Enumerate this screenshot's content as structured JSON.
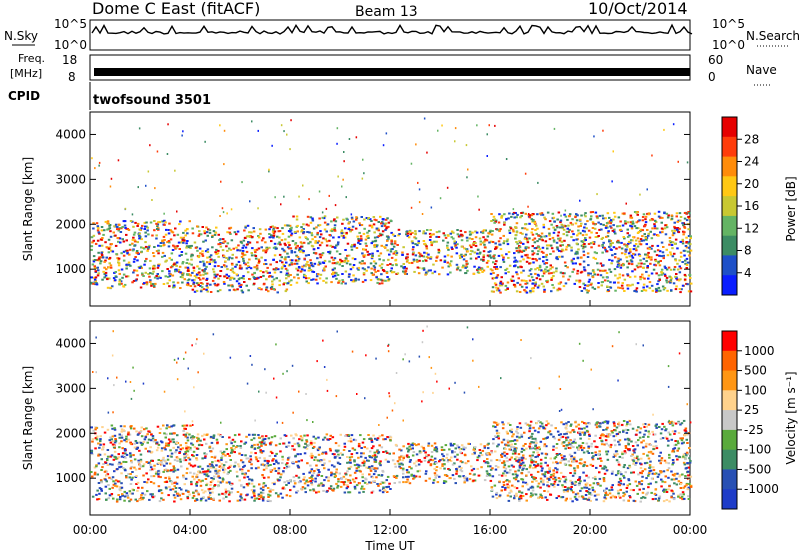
{
  "header": {
    "station": "Dome C East (fitACF)",
    "beam": "Beam 13",
    "date": "10/Oct/2014"
  },
  "noise_panel": {
    "left_label": "N.Sky",
    "right_label": "N.Search",
    "ticks": [
      "10^5",
      "10^0"
    ]
  },
  "freq_panel": {
    "left_label_1": "Freq.",
    "left_label_2": "[MHz]",
    "left_ticks": [
      "18",
      "8"
    ],
    "right_label": "Nave",
    "right_ticks": [
      "60",
      "0"
    ]
  },
  "cpid_panel": {
    "label": "CPID",
    "program": "twofsound 3501"
  },
  "colors": {
    "power_scale": [
      "#0a1eff",
      "#1e50c8",
      "#3c8c64",
      "#64b464",
      "#c8c832",
      "#ffc814",
      "#ff8c0a",
      "#ff3c0a",
      "#e60000"
    ],
    "velocity_scale": [
      "#1e3cc8",
      "#2850b4",
      "#3c8c64",
      "#5aaa3c",
      "#c8c8c8",
      "#ffd28c",
      "#ff9614",
      "#ff6400",
      "#ff0000"
    ]
  },
  "chart_data": [
    {
      "type": "heatmap",
      "name": "power-panel",
      "xlabel": "",
      "ylabel": "Slant Range [km]",
      "x_range": [
        "00:00",
        "24:00"
      ],
      "ylim": [
        180,
        4500
      ],
      "y_ticks": [
        "1000",
        "2000",
        "3000",
        "4000"
      ],
      "colorbar": {
        "label": "Power [dB]",
        "ticks": [
          "28",
          "24",
          "20",
          "16",
          "12",
          "8",
          "4"
        ]
      },
      "bands": [
        {
          "start_h": 0.0,
          "end_h": 4.0,
          "range_min_km": 600,
          "range_max_km": 2100,
          "level": "mixed-blue-green-orange"
        },
        {
          "start_h": 4.0,
          "end_h": 8.0,
          "range_min_km": 500,
          "range_max_km": 2000,
          "level": "green-red"
        },
        {
          "start_h": 8.0,
          "end_h": 12.0,
          "range_min_km": 700,
          "range_max_km": 2200,
          "level": "orange-red"
        },
        {
          "start_h": 12.0,
          "end_h": 16.0,
          "range_min_km": 900,
          "range_max_km": 1900,
          "level": "green-orange"
        },
        {
          "start_h": 16.0,
          "end_h": 24.0,
          "range_min_km": 500,
          "range_max_km": 2300,
          "level": "red-orange"
        }
      ]
    },
    {
      "type": "heatmap",
      "name": "velocity-panel",
      "xlabel": "Time UT",
      "ylabel": "Slant Range [km]",
      "x_range": [
        "00:00",
        "24:00"
      ],
      "ylim": [
        180,
        4500
      ],
      "y_ticks": [
        "1000",
        "2000",
        "3000",
        "4000"
      ],
      "x_ticks": [
        "00:00",
        "04:00",
        "08:00",
        "12:00",
        "16:00",
        "20:00",
        "00:00"
      ],
      "colorbar": {
        "label": "Velocity [m s⁻¹]",
        "ticks": [
          "1000",
          "500",
          "100",
          "25",
          "-25",
          "-100",
          "-500",
          "-1000"
        ]
      },
      "bands": [
        {
          "start_h": 0.0,
          "end_h": 4.0,
          "range_min_km": 500,
          "range_max_km": 2200,
          "level": "grey-orange-green"
        },
        {
          "start_h": 4.0,
          "end_h": 8.0,
          "range_min_km": 500,
          "range_max_km": 2000,
          "level": "orange-grey"
        },
        {
          "start_h": 8.0,
          "end_h": 12.0,
          "range_min_km": 700,
          "range_max_km": 2000,
          "level": "green-blue"
        },
        {
          "start_h": 12.0,
          "end_h": 16.0,
          "range_min_km": 900,
          "range_max_km": 1800,
          "level": "green"
        },
        {
          "start_h": 16.0,
          "end_h": 24.0,
          "range_min_km": 500,
          "range_max_km": 2300,
          "level": "green-grey"
        }
      ]
    }
  ]
}
